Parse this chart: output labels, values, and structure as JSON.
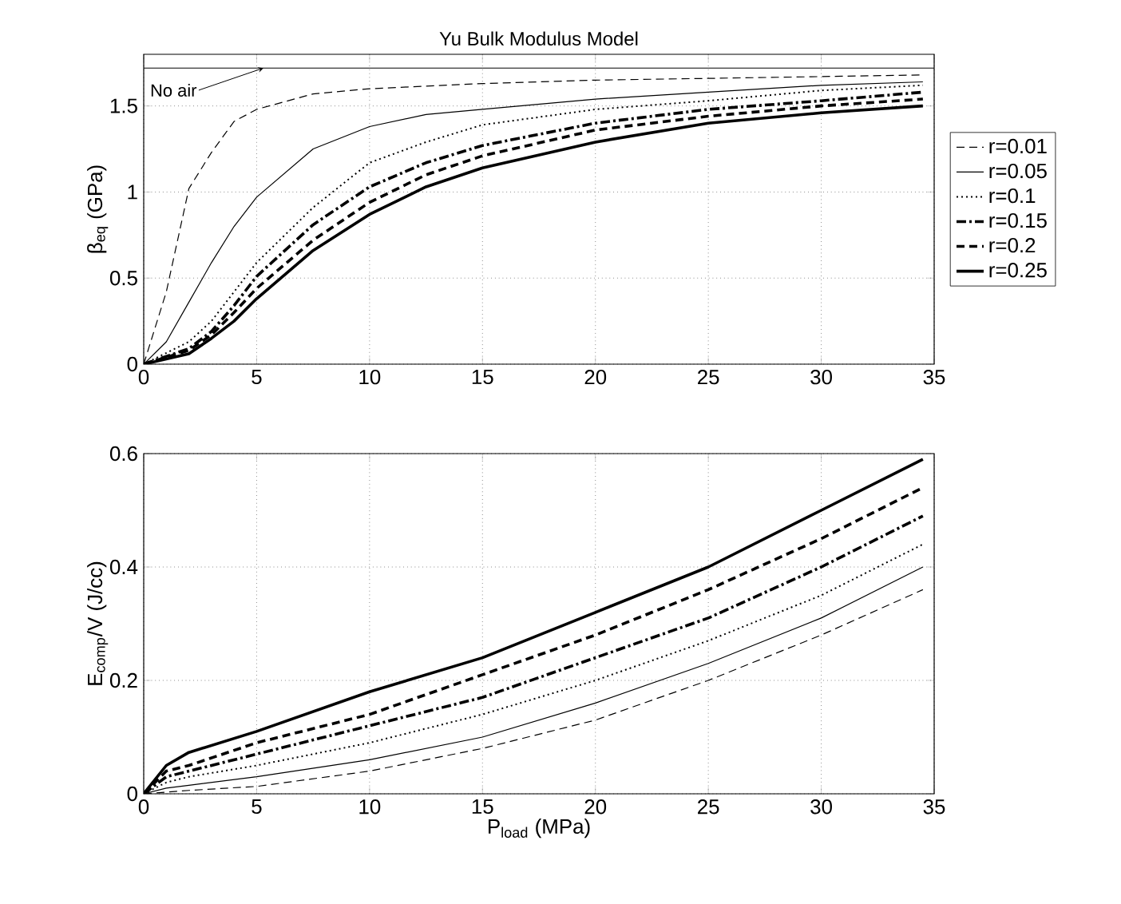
{
  "chart_data": [
    {
      "type": "line",
      "title": "Yu Bulk Modulus Model",
      "ylabel": "β$_{eq}$ (GPa)",
      "xlim": [
        0,
        35
      ],
      "ylim": [
        0,
        1.8
      ],
      "xticks": [
        0,
        5,
        10,
        15,
        20,
        25,
        30,
        35
      ],
      "yticks": [
        0,
        0.5,
        1,
        1.5
      ],
      "grid": true,
      "legend": "right",
      "marker": "none",
      "ref_lines": [
        {
          "axis": "y",
          "value": 1.72,
          "label": "No air",
          "color": "#000000",
          "line_style": "solid"
        }
      ],
      "series": [
        {
          "name": "r=0.01",
          "color": "#000000",
          "line_style": "dashed",
          "x": [
            0,
            1,
            2,
            3,
            4,
            5,
            7.5,
            10,
            15,
            20,
            25,
            34.5
          ],
          "values": [
            0,
            0.42,
            1.02,
            1.23,
            1.41,
            1.48,
            1.57,
            1.6,
            1.63,
            1.65,
            1.66,
            1.68
          ]
        },
        {
          "name": "r=0.05",
          "color": "#000000",
          "line_style": "solid",
          "x": [
            0,
            1,
            2,
            3,
            4,
            5,
            7.5,
            10,
            12.5,
            15,
            20,
            25,
            30,
            34.5
          ],
          "values": [
            0,
            0.13,
            0.36,
            0.59,
            0.8,
            0.97,
            1.25,
            1.38,
            1.45,
            1.48,
            1.54,
            1.58,
            1.62,
            1.64
          ]
        },
        {
          "name": "r=0.1",
          "color": "#000000",
          "line_style": "dotted",
          "x": [
            0,
            2,
            3,
            4,
            5,
            7.5,
            10,
            12.5,
            15,
            20,
            25,
            30,
            34.5
          ],
          "values": [
            0,
            0.13,
            0.25,
            0.42,
            0.59,
            0.91,
            1.17,
            1.29,
            1.39,
            1.48,
            1.53,
            1.59,
            1.62
          ]
        },
        {
          "name": "r=0.15",
          "color": "#000000",
          "line_style": "dashdot",
          "x": [
            0,
            2,
            3,
            4,
            5,
            7.5,
            10,
            12.5,
            15,
            20,
            25,
            30,
            34.5
          ],
          "values": [
            0,
            0.09,
            0.19,
            0.34,
            0.51,
            0.81,
            1.03,
            1.17,
            1.27,
            1.4,
            1.48,
            1.53,
            1.58
          ]
        },
        {
          "name": "r=0.2",
          "color": "#000000",
          "line_style": "dashed",
          "x": [
            0,
            2,
            3,
            4,
            5,
            7.5,
            10,
            12.5,
            15,
            20,
            25,
            30,
            34.5
          ],
          "values": [
            0,
            0.08,
            0.17,
            0.3,
            0.44,
            0.72,
            0.94,
            1.1,
            1.21,
            1.36,
            1.44,
            1.5,
            1.54
          ]
        },
        {
          "name": "r=0.25",
          "color": "#000000",
          "line_style": "solid",
          "x": [
            0,
            2,
            3,
            4,
            5,
            7.5,
            10,
            12.5,
            15,
            20,
            25,
            30,
            34.5
          ],
          "values": [
            0,
            0.06,
            0.15,
            0.25,
            0.38,
            0.66,
            0.87,
            1.03,
            1.14,
            1.29,
            1.4,
            1.46,
            1.5
          ]
        }
      ]
    },
    {
      "type": "line",
      "xlabel": "P$_{load}$ (MPa)",
      "ylabel": "E$_{comp}$/V (J/cc)",
      "xlim": [
        0,
        35
      ],
      "ylim": [
        0,
        0.6
      ],
      "xticks": [
        0,
        5,
        10,
        15,
        20,
        25,
        30,
        35
      ],
      "yticks": [
        0,
        0.2,
        0.4,
        0.6
      ],
      "grid": true,
      "marker": "none",
      "x": [
        0,
        1,
        2,
        5,
        10,
        15,
        20,
        25,
        30,
        34.5
      ],
      "series": [
        {
          "color": "#000000",
          "line_style": "dashed",
          "values": [
            0,
            0.003,
            0.006,
            0.013,
            0.04,
            0.08,
            0.13,
            0.2,
            0.28,
            0.36
          ]
        },
        {
          "color": "#000000",
          "line_style": "solid",
          "values": [
            0,
            0.01,
            0.015,
            0.03,
            0.06,
            0.1,
            0.16,
            0.23,
            0.31,
            0.4
          ]
        },
        {
          "color": "#000000",
          "line_style": "dotted",
          "values": [
            0,
            0.02,
            0.03,
            0.05,
            0.09,
            0.14,
            0.2,
            0.27,
            0.35,
            0.44
          ]
        },
        {
          "color": "#000000",
          "line_style": "dashdot",
          "values": [
            0,
            0.03,
            0.04,
            0.07,
            0.12,
            0.17,
            0.24,
            0.31,
            0.4,
            0.49
          ]
        },
        {
          "color": "#000000",
          "line_style": "dashed",
          "values": [
            0,
            0.04,
            0.05,
            0.09,
            0.14,
            0.21,
            0.28,
            0.36,
            0.45,
            0.54
          ]
        },
        {
          "color": "#000000",
          "line_style": "solid",
          "values": [
            0,
            0.05,
            0.073,
            0.11,
            0.18,
            0.24,
            0.32,
            0.4,
            0.5,
            0.59
          ]
        }
      ]
    }
  ]
}
